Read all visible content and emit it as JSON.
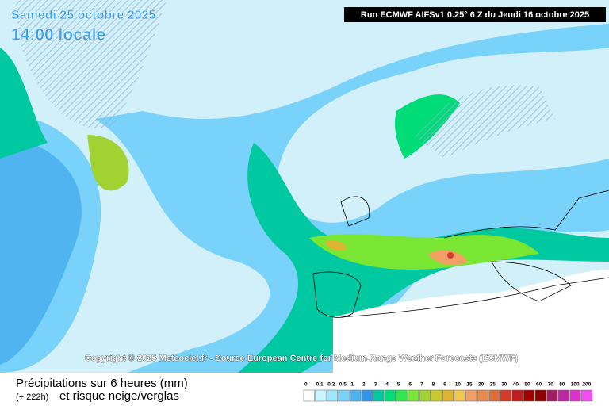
{
  "header": {
    "date": "Samedi 25 octobre 2025",
    "time": "14:00 locale",
    "run": "Run ECMWF AIFSv1 0.25° 6 Z du Jeudi 16 octobre 2025"
  },
  "copyright": "Copyright © 2025 Meteociel.fr - Source European Centre for Medium-Range Weather Forecasts (ECMWF)",
  "legend": {
    "title": "Précipitations sur 6 heures (mm)",
    "lead": "(+ 222h)",
    "subtitle": "et risque neige/verglas",
    "scale": [
      {
        "label": "0",
        "color": "#ffffff"
      },
      {
        "label": "0.1",
        "color": "#c8f5ff"
      },
      {
        "label": "0.2",
        "color": "#a0e6ff"
      },
      {
        "label": "0.5",
        "color": "#78d2fa"
      },
      {
        "label": "1",
        "color": "#50b4f0"
      },
      {
        "label": "2",
        "color": "#3296e6"
      },
      {
        "label": "3",
        "color": "#00c8a0"
      },
      {
        "label": "4",
        "color": "#00dc78"
      },
      {
        "label": "5",
        "color": "#32e650"
      },
      {
        "label": "6",
        "color": "#78e632"
      },
      {
        "label": "7",
        "color": "#a0d232"
      },
      {
        "label": "8",
        "color": "#c8c832"
      },
      {
        "label": "9",
        "color": "#dcb432"
      },
      {
        "label": "10",
        "color": "#f0c850"
      },
      {
        "label": "15",
        "color": "#f0a064"
      },
      {
        "label": "20",
        "color": "#e68c50"
      },
      {
        "label": "25",
        "color": "#dc6e3c"
      },
      {
        "label": "30",
        "color": "#d23c28"
      },
      {
        "label": "40",
        "color": "#be1e1e"
      },
      {
        "label": "50",
        "color": "#a00000"
      },
      {
        "label": "60",
        "color": "#8c0000"
      },
      {
        "label": "70",
        "color": "#a01e64"
      },
      {
        "label": "80",
        "color": "#be28a0"
      },
      {
        "label": "100",
        "color": "#dc32c8"
      },
      {
        "label": "200",
        "color": "#f050f0"
      }
    ]
  }
}
